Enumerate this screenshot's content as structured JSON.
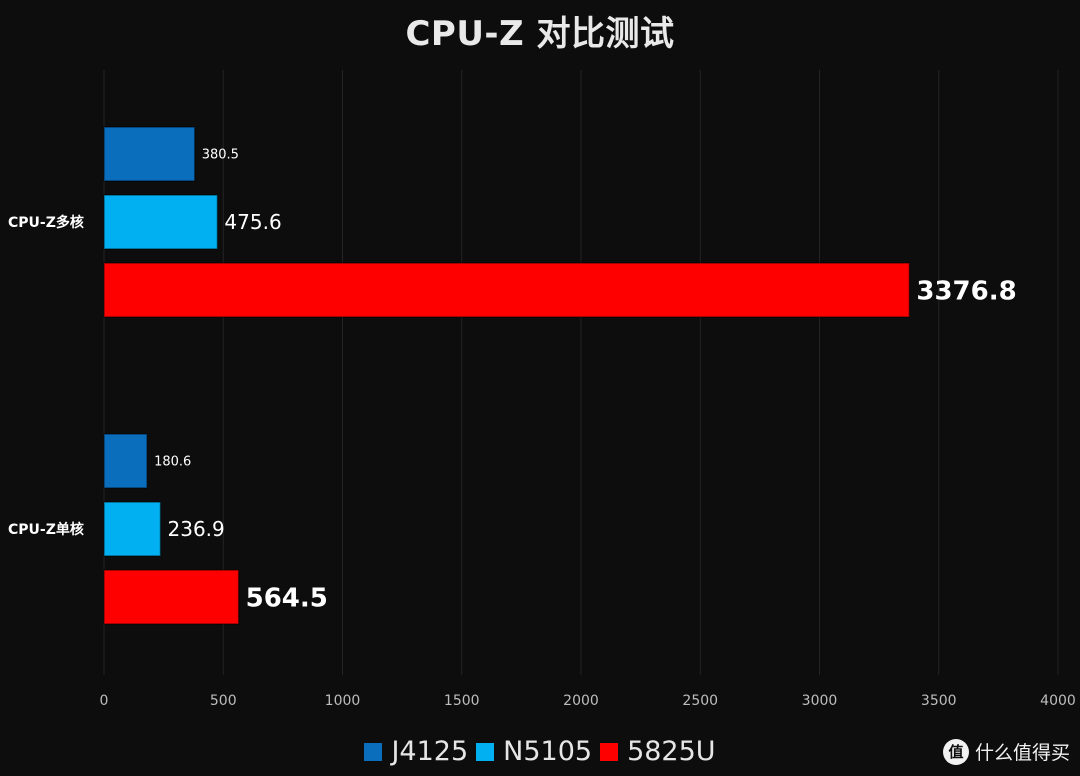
{
  "chart_data": {
    "type": "bar",
    "orientation": "horizontal",
    "title": "CPU-Z 对比测试",
    "categories": [
      "CPU-Z多核",
      "CPU-Z单核"
    ],
    "series": [
      {
        "name": "J4125",
        "color": "#0a6ebd",
        "values": [
          380.5,
          180.6
        ]
      },
      {
        "name": "N5105",
        "color": "#00b0f0",
        "values": [
          475.6,
          236.9
        ]
      },
      {
        "name": "5825U",
        "color": "#ff0000",
        "values": [
          3376.8,
          564.5
        ]
      }
    ],
    "xlim": [
      0,
      4000
    ],
    "xticks": [
      0,
      500,
      1000,
      1500,
      2000,
      2500,
      3000,
      3500,
      4000
    ],
    "grid": true,
    "legend_position": "bottom"
  },
  "watermark": {
    "icon": "值",
    "text": "什么值得买"
  }
}
